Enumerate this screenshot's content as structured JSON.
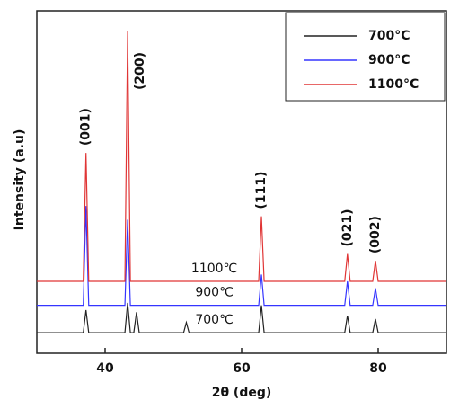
{
  "chart_data": {
    "type": "line",
    "xlabel": "2θ (deg)",
    "ylabel": "Intensity (a.u)",
    "xlim": [
      30,
      90
    ],
    "xticks": [
      40,
      60,
      80
    ],
    "ylim": [
      0,
      100
    ],
    "legend": "upper right",
    "x": [
      30,
      36.8,
      37.2,
      37.6,
      42.9,
      43.3,
      43.7,
      44.2,
      44.6,
      45.0,
      51.5,
      51.9,
      52.3,
      62.5,
      62.9,
      63.3,
      75.1,
      75.5,
      75.9,
      79.2,
      79.6,
      80.0,
      90
    ],
    "series": [
      {
        "name": "700°C",
        "color": "#222222",
        "values": [
          6,
          6,
          12.6,
          6,
          6,
          14.7,
          6,
          6,
          12,
          6,
          6,
          9,
          6,
          6,
          14,
          6,
          6,
          11,
          6,
          6,
          10,
          6,
          6
        ]
      },
      {
        "name": "900°C",
        "color": "#3535ff",
        "values": [
          14,
          14,
          43,
          14,
          14,
          39,
          14,
          14,
          14,
          14,
          14,
          14,
          14,
          14,
          23,
          14,
          14,
          21,
          14,
          14,
          19,
          14,
          14
        ]
      },
      {
        "name": "1100°C",
        "color": "#e03535",
        "values": [
          21,
          21,
          58.5,
          21,
          21,
          94,
          21,
          21,
          21,
          21,
          21,
          21,
          21,
          21,
          40,
          21,
          21,
          29,
          21,
          21,
          27,
          21,
          21
        ]
      }
    ],
    "peak_labels": [
      "(001)",
      "(200)",
      "(111)",
      "(021)",
      "(002)"
    ],
    "curve_labels": [
      "700℃",
      "900℃",
      "1100℃"
    ]
  }
}
